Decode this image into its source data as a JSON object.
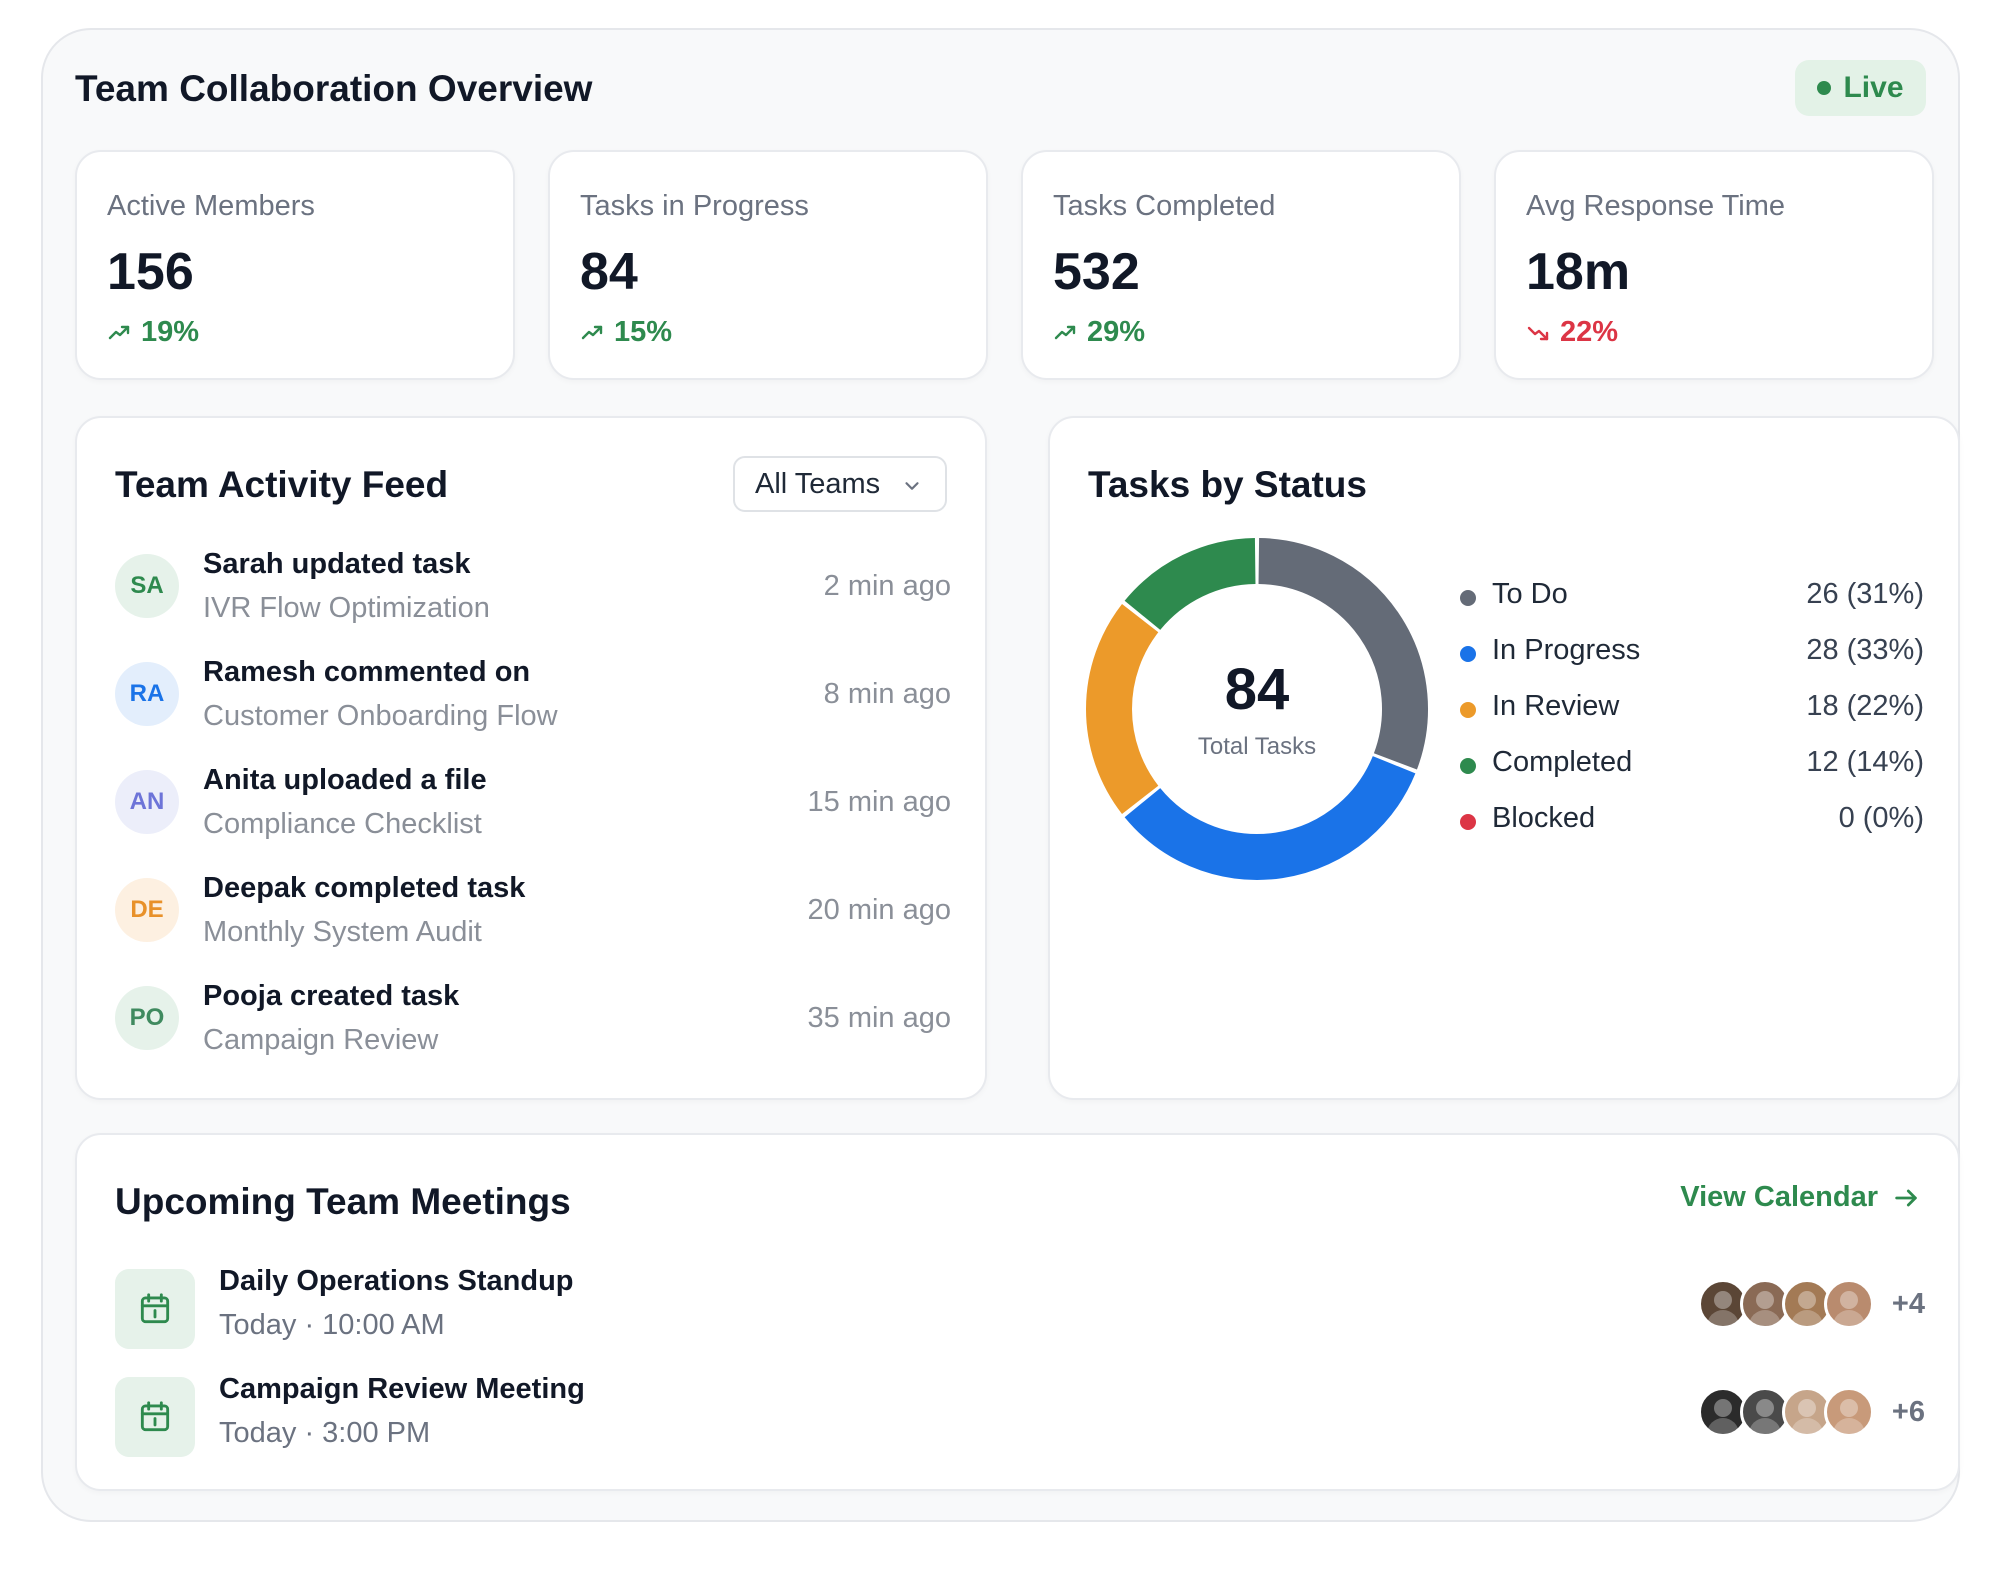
{
  "header": {
    "title": "Team Collaboration Overview",
    "status_label": "Live"
  },
  "kpis": [
    {
      "label": "Active Members",
      "value": "156",
      "change": "19%",
      "trend": "up"
    },
    {
      "label": "Tasks in Progress",
      "value": "84",
      "change": "15%",
      "trend": "up"
    },
    {
      "label": "Tasks Completed",
      "value": "532",
      "change": "29%",
      "trend": "up"
    },
    {
      "label": "Avg Response Time",
      "value": "18m",
      "change": "22%",
      "trend": "down"
    }
  ],
  "activity": {
    "title": "Team Activity Feed",
    "filter_value": "All Teams",
    "items": [
      {
        "initials": "SA",
        "title": "Sarah updated task",
        "subtitle": "IVR Flow Optimization",
        "time": "2 min ago",
        "avatar_bg": "#e6f2ea",
        "avatar_fg": "#2e8a4e"
      },
      {
        "initials": "RA",
        "title": "Ramesh commented on",
        "subtitle": "Customer Onboarding Flow",
        "time": "8 min ago",
        "avatar_bg": "#e3eefc",
        "avatar_fg": "#1a73e8"
      },
      {
        "initials": "AN",
        "title": "Anita uploaded a file",
        "subtitle": "Compliance Checklist",
        "time": "15 min ago",
        "avatar_bg": "#eceefa",
        "avatar_fg": "#6d74d8"
      },
      {
        "initials": "DE",
        "title": "Deepak completed task",
        "subtitle": "Monthly System Audit",
        "time": "20 min ago",
        "avatar_bg": "#fdf0e1",
        "avatar_fg": "#e8912a"
      },
      {
        "initials": "PO",
        "title": "Pooja created task",
        "subtitle": "Campaign Review",
        "time": "35 min ago",
        "avatar_bg": "#e6f2ea",
        "avatar_fg": "#3f8a5f"
      }
    ]
  },
  "status_chart": {
    "title": "Tasks by Status",
    "total": "84",
    "total_caption": "Total Tasks"
  },
  "chart_data": {
    "type": "pie",
    "title": "Tasks by Status",
    "categories": [
      "To Do",
      "In Progress",
      "In Review",
      "Completed",
      "Blocked"
    ],
    "values": [
      26,
      28,
      18,
      12,
      0
    ],
    "value_labels": [
      "26 (31%)",
      "28 (33%)",
      "18 (22%)",
      "12 (14%)",
      "0 (0%)"
    ],
    "colors": [
      "#646b77",
      "#1a73e8",
      "#ec9a2a",
      "#2e8a4e",
      "#dc3545"
    ],
    "legend_position": "right"
  },
  "meetings": {
    "title": "Upcoming Team Meetings",
    "link_label": "View Calendar",
    "items": [
      {
        "title": "Daily Operations Standup",
        "time": "Today · 10:00 AM",
        "extra": "+4",
        "faces": [
          "#5b4636",
          "#8a6a55",
          "#a37a55",
          "#b98b6e"
        ]
      },
      {
        "title": "Campaign Review Meeting",
        "time": "Today · 3:00 PM",
        "extra": "+6",
        "faces": [
          "#2b2b2b",
          "#4a4a4a",
          "#c6a58a",
          "#c89a7a"
        ]
      }
    ]
  }
}
